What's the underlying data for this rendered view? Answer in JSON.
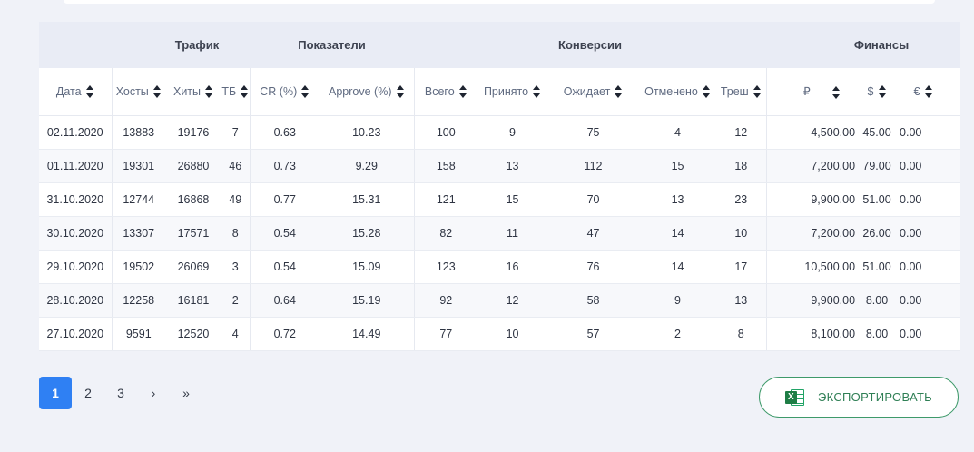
{
  "groups": {
    "traffic": "Трафик",
    "metrics": "Показатели",
    "conversions": "Конверсии",
    "finance": "Финансы"
  },
  "columns": {
    "date": "Дата",
    "hosts": "Хосты",
    "hits": "Хиты",
    "tb": "ТБ",
    "cr": "CR (%)",
    "approve": "Approve (%)",
    "total": "Всего",
    "accepted": "Принято",
    "pending": "Ожидает",
    "cancelled": "Отменено",
    "trash": "Треш",
    "rub": "₽",
    "usd": "$",
    "eur": "€"
  },
  "rows": [
    {
      "date": "02.11.2020",
      "hosts": "13883",
      "hits": "19176",
      "tb": "7",
      "cr": "0.63",
      "approve": "10.23",
      "total": "100",
      "accepted": "9",
      "pending": "75",
      "cancelled": "4",
      "trash": "12",
      "rub": "4,500.00",
      "usd": "45.00",
      "eur": "0.00"
    },
    {
      "date": "01.11.2020",
      "hosts": "19301",
      "hits": "26880",
      "tb": "46",
      "cr": "0.73",
      "approve": "9.29",
      "total": "158",
      "accepted": "13",
      "pending": "112",
      "cancelled": "15",
      "trash": "18",
      "rub": "7,200.00",
      "usd": "79.00",
      "eur": "0.00"
    },
    {
      "date": "31.10.2020",
      "hosts": "12744",
      "hits": "16868",
      "tb": "49",
      "cr": "0.77",
      "approve": "15.31",
      "total": "121",
      "accepted": "15",
      "pending": "70",
      "cancelled": "13",
      "trash": "23",
      "rub": "9,900.00",
      "usd": "51.00",
      "eur": "0.00"
    },
    {
      "date": "30.10.2020",
      "hosts": "13307",
      "hits": "17571",
      "tb": "8",
      "cr": "0.54",
      "approve": "15.28",
      "total": "82",
      "accepted": "11",
      "pending": "47",
      "cancelled": "14",
      "trash": "10",
      "rub": "7,200.00",
      "usd": "26.00",
      "eur": "0.00"
    },
    {
      "date": "29.10.2020",
      "hosts": "19502",
      "hits": "26069",
      "tb": "3",
      "cr": "0.54",
      "approve": "15.09",
      "total": "123",
      "accepted": "16",
      "pending": "76",
      "cancelled": "14",
      "trash": "17",
      "rub": "10,500.00",
      "usd": "51.00",
      "eur": "0.00"
    },
    {
      "date": "28.10.2020",
      "hosts": "12258",
      "hits": "16181",
      "tb": "2",
      "cr": "0.64",
      "approve": "15.19",
      "total": "92",
      "accepted": "12",
      "pending": "58",
      "cancelled": "9",
      "trash": "13",
      "rub": "9,900.00",
      "usd": "8.00",
      "eur": "0.00"
    },
    {
      "date": "27.10.2020",
      "hosts": "9591",
      "hits": "12520",
      "tb": "4",
      "cr": "0.72",
      "approve": "14.49",
      "total": "77",
      "accepted": "10",
      "pending": "57",
      "cancelled": "2",
      "trash": "8",
      "rub": "8,100.00",
      "usd": "8.00",
      "eur": "0.00"
    }
  ],
  "pagination": {
    "pages": [
      "1",
      "2",
      "3"
    ],
    "next": "›",
    "last": "»",
    "current": "1"
  },
  "export": {
    "label": "ЭКСПОРТИРОВАТЬ",
    "icon": "excel-icon",
    "icon_letter": "X",
    "color": "#3e9a6a"
  },
  "colors": {
    "accent": "#2f80f3",
    "background": "#f0f2f8"
  }
}
